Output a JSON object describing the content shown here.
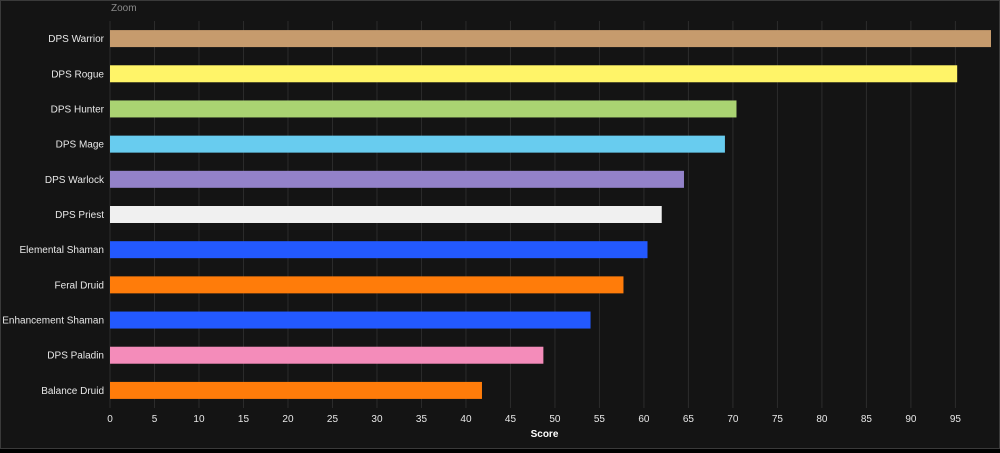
{
  "toolbar": {
    "zoom_label": "Zoom"
  },
  "chart_data": {
    "type": "bar",
    "orientation": "horizontal",
    "title": "",
    "xlabel": "Score",
    "ylabel": "",
    "xlim": [
      0,
      99
    ],
    "xticks": [
      0,
      5,
      10,
      15,
      20,
      25,
      30,
      35,
      40,
      45,
      50,
      55,
      60,
      65,
      70,
      75,
      80,
      85,
      90,
      95
    ],
    "grid": true,
    "categories": [
      "DPS Warrior",
      "DPS Rogue",
      "DPS Hunter",
      "DPS Mage",
      "DPS Warlock",
      "DPS Priest",
      "Elemental Shaman",
      "Feral Druid",
      "Enhancement Shaman",
      "DPS Paladin",
      "Balance Druid"
    ],
    "values": [
      99,
      95.2,
      70.4,
      69.1,
      64.5,
      62.0,
      60.4,
      57.7,
      54.0,
      48.7,
      41.8
    ],
    "colors": [
      "#c69b6d",
      "#fff468",
      "#aad372",
      "#68ccef",
      "#9382c9",
      "#f0f0f0",
      "#2359ff",
      "#ff7c0a",
      "#2359ff",
      "#f48cba",
      "#ff7c0a"
    ]
  }
}
